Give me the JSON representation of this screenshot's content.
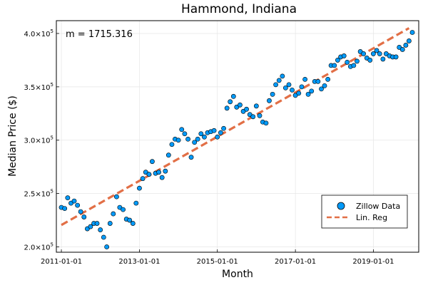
{
  "chart_data": {
    "type": "scatter",
    "title": "Hammond, Indiana",
    "xlabel": "Month",
    "ylabel": "Median Price ($)",
    "annotation": "m = 1715.316",
    "grid": true,
    "legend_position": "bottom-right",
    "xlim": [
      "2010-11-15",
      "2020-03-01"
    ],
    "ylim": [
      195000,
      412000
    ],
    "x_ticks": [
      "2011-01-01",
      "2013-01-01",
      "2015-01-01",
      "2017-01-01",
      "2019-01-01"
    ],
    "y_ticks": [
      {
        "value": 200000,
        "mantissa": "2.0",
        "exp": "5"
      },
      {
        "value": 250000,
        "mantissa": "2.5",
        "exp": "5"
      },
      {
        "value": 300000,
        "mantissa": "3.0",
        "exp": "5"
      },
      {
        "value": 350000,
        "mantissa": "3.5",
        "exp": "5"
      },
      {
        "value": 400000,
        "mantissa": "4.0",
        "exp": "5"
      }
    ],
    "y_tick_base": "×10",
    "series": [
      {
        "name": "Zillow Data",
        "kind": "scatter",
        "color": "#009af9",
        "start_month": "2011-01",
        "values": [
          237000,
          236000,
          246000,
          241000,
          243000,
          239000,
          233000,
          228000,
          217000,
          219000,
          222000,
          222000,
          216000,
          209000,
          200000,
          222000,
          231000,
          247000,
          237000,
          235000,
          226000,
          225000,
          222000,
          241000,
          255000,
          264000,
          270000,
          268000,
          280000,
          269000,
          270000,
          265000,
          271000,
          286000,
          296000,
          301000,
          300000,
          310000,
          306000,
          301000,
          284000,
          298000,
          301000,
          306000,
          303000,
          307000,
          308000,
          309000,
          303000,
          307000,
          311000,
          330000,
          336000,
          341000,
          331000,
          333000,
          327000,
          329000,
          324000,
          322000,
          332000,
          323000,
          317000,
          316000,
          337000,
          343000,
          352000,
          356000,
          360000,
          349000,
          352000,
          347000,
          342000,
          344000,
          350000,
          357000,
          343000,
          346000,
          355000,
          355000,
          348000,
          351000,
          357000,
          370000,
          370000,
          375000,
          378000,
          379000,
          373000,
          369000,
          370000,
          374000,
          383000,
          381000,
          377000,
          375000,
          381000,
          384000,
          381000,
          376000,
          381000,
          379000,
          378000,
          378000,
          387000,
          385000,
          389000,
          393000,
          401000
        ]
      },
      {
        "name": "Lin. Reg",
        "kind": "line",
        "color": "#e26f46",
        "start": {
          "x": "2011-01-01",
          "y": 220500
        },
        "end": {
          "x": "2019-12-01",
          "y": 405000
        }
      }
    ]
  }
}
